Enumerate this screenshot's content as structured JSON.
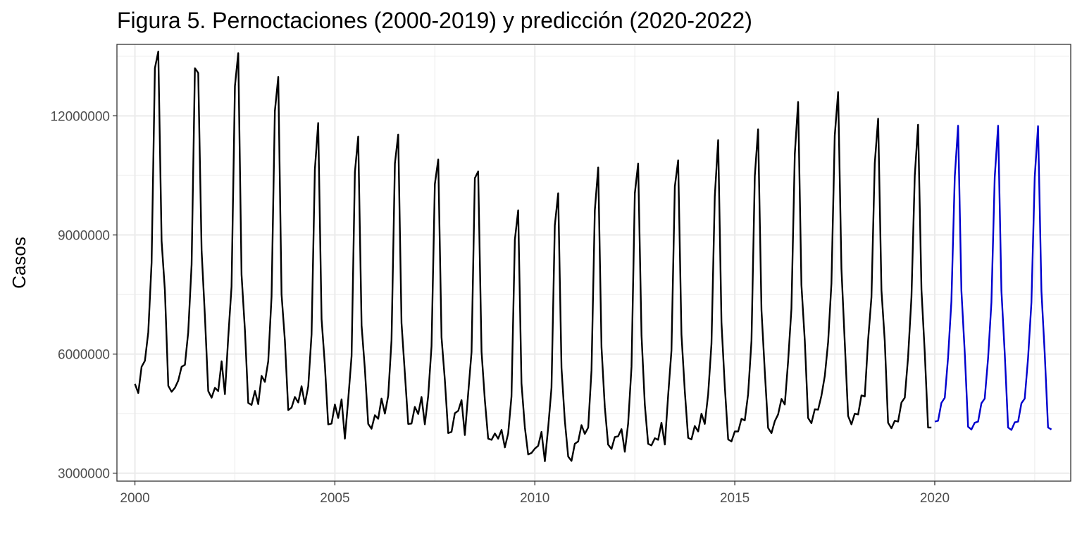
{
  "chart_data": {
    "type": "line",
    "title": "Figura 5. Pernoctaciones (2000-2019) y predicción (2020-2022)",
    "xlabel": "",
    "ylabel": "Casos",
    "xlim": [
      1999.55,
      2023.4
    ],
    "ylim": [
      2800000,
      13800000
    ],
    "x_ticks": [
      2000,
      2005,
      2010,
      2015,
      2020
    ],
    "y_ticks": [
      3000000,
      6000000,
      9000000,
      12000000
    ],
    "x_tick_labels": [
      "2000",
      "2005",
      "2010",
      "2015",
      "2020"
    ],
    "y_tick_labels": [
      "3000000",
      "6000000",
      "9000000",
      "12000000"
    ],
    "grid": true,
    "legend": "none",
    "colors": {
      "observed": "#000000",
      "forecast": "#0000cd",
      "grid": "#ebebeb",
      "panel_border": "#333333"
    },
    "series": [
      {
        "start_year": 2000,
        "start_month": 1,
        "frequency": "monthly",
        "values": [
          5250000,
          5020000,
          5680000,
          5830000,
          6550000,
          8300000,
          13200000,
          13620000,
          8850000,
          7600000,
          5200000,
          5050000,
          5150000,
          5330000,
          5680000,
          5730000,
          6550000,
          8250000,
          13200000,
          13080000,
          8600000,
          6950000,
          5070000,
          4900000,
          5150000,
          5070000,
          5820000,
          4990000,
          6420000,
          7700000,
          12750000,
          13580000,
          8000000,
          6600000,
          4770000,
          4720000,
          5070000,
          4740000,
          5450000,
          5300000,
          5820000,
          7450000,
          12120000,
          12980000,
          7500000,
          6350000,
          4590000,
          4650000,
          4920000,
          4780000,
          5190000,
          4740000,
          5190000,
          6500000,
          10650000,
          11820000,
          6880000,
          5720000,
          4230000,
          4250000,
          4730000,
          4390000,
          4860000,
          3870000,
          4850000,
          5950000,
          10580000,
          11480000,
          6720000,
          5620000,
          4240000,
          4120000,
          4460000,
          4370000,
          4880000,
          4500000,
          4950000,
          6350000,
          10800000,
          11530000,
          6780000,
          5500000,
          4240000,
          4250000,
          4670000,
          4490000,
          4920000,
          4230000,
          4950000,
          6200000,
          10280000,
          10900000,
          6420000,
          5350000,
          4010000,
          4040000,
          4510000,
          4570000,
          4840000,
          3960000,
          5000000,
          6050000,
          10430000,
          10600000,
          6060000,
          4840000,
          3870000,
          3840000,
          4000000,
          3870000,
          4090000,
          3650000,
          4000000,
          4930000,
          8880000,
          9620000,
          5260000,
          4150000,
          3470000,
          3510000,
          3620000,
          3690000,
          4040000,
          3300000,
          4150000,
          5150000,
          9240000,
          10050000,
          5650000,
          4330000,
          3420000,
          3310000,
          3740000,
          3800000,
          4210000,
          3990000,
          4150000,
          5590000,
          9620000,
          10700000,
          6170000,
          4660000,
          3720000,
          3610000,
          3910000,
          3930000,
          4110000,
          3540000,
          4250000,
          5680000,
          10050000,
          10800000,
          6470000,
          4720000,
          3740000,
          3700000,
          3880000,
          3840000,
          4270000,
          3720000,
          4960000,
          6090000,
          10220000,
          10880000,
          6490000,
          5050000,
          3890000,
          3850000,
          4190000,
          4050000,
          4500000,
          4240000,
          4990000,
          6260000,
          9970000,
          11390000,
          6790000,
          5190000,
          3850000,
          3800000,
          4050000,
          4050000,
          4370000,
          4330000,
          4990000,
          6330000,
          10480000,
          11660000,
          7100000,
          5560000,
          4140000,
          4010000,
          4310000,
          4480000,
          4870000,
          4730000,
          5820000,
          7140000,
          11040000,
          12350000,
          7740000,
          6330000,
          4390000,
          4260000,
          4610000,
          4600000,
          4950000,
          5450000,
          6300000,
          7780000,
          11500000,
          12600000,
          8150000,
          6300000,
          4440000,
          4230000,
          4500000,
          4480000,
          4960000,
          4930000,
          6360000,
          7430000,
          10800000,
          11930000,
          7610000,
          6330000,
          4270000,
          4130000,
          4320000,
          4300000,
          4780000,
          4900000,
          5920000,
          7430000,
          10490000,
          11780000,
          7620000,
          6030000,
          4150000,
          4150000
        ]
      },
      {
        "start_year": 2020,
        "start_month": 1,
        "frequency": "monthly",
        "values": [
          4300000,
          4320000,
          4770000,
          4900000,
          5920000,
          7330000,
          10470000,
          11750000,
          7600000,
          6020000,
          4170000,
          4100000,
          4270000,
          4300000,
          4760000,
          4880000,
          5900000,
          7300000,
          10450000,
          11750000,
          7600000,
          6020000,
          4150000,
          4090000,
          4280000,
          4300000,
          4760000,
          4880000,
          5890000,
          7300000,
          10460000,
          11740000,
          7590000,
          6010000,
          4150000,
          4100000
        ]
      }
    ]
  }
}
